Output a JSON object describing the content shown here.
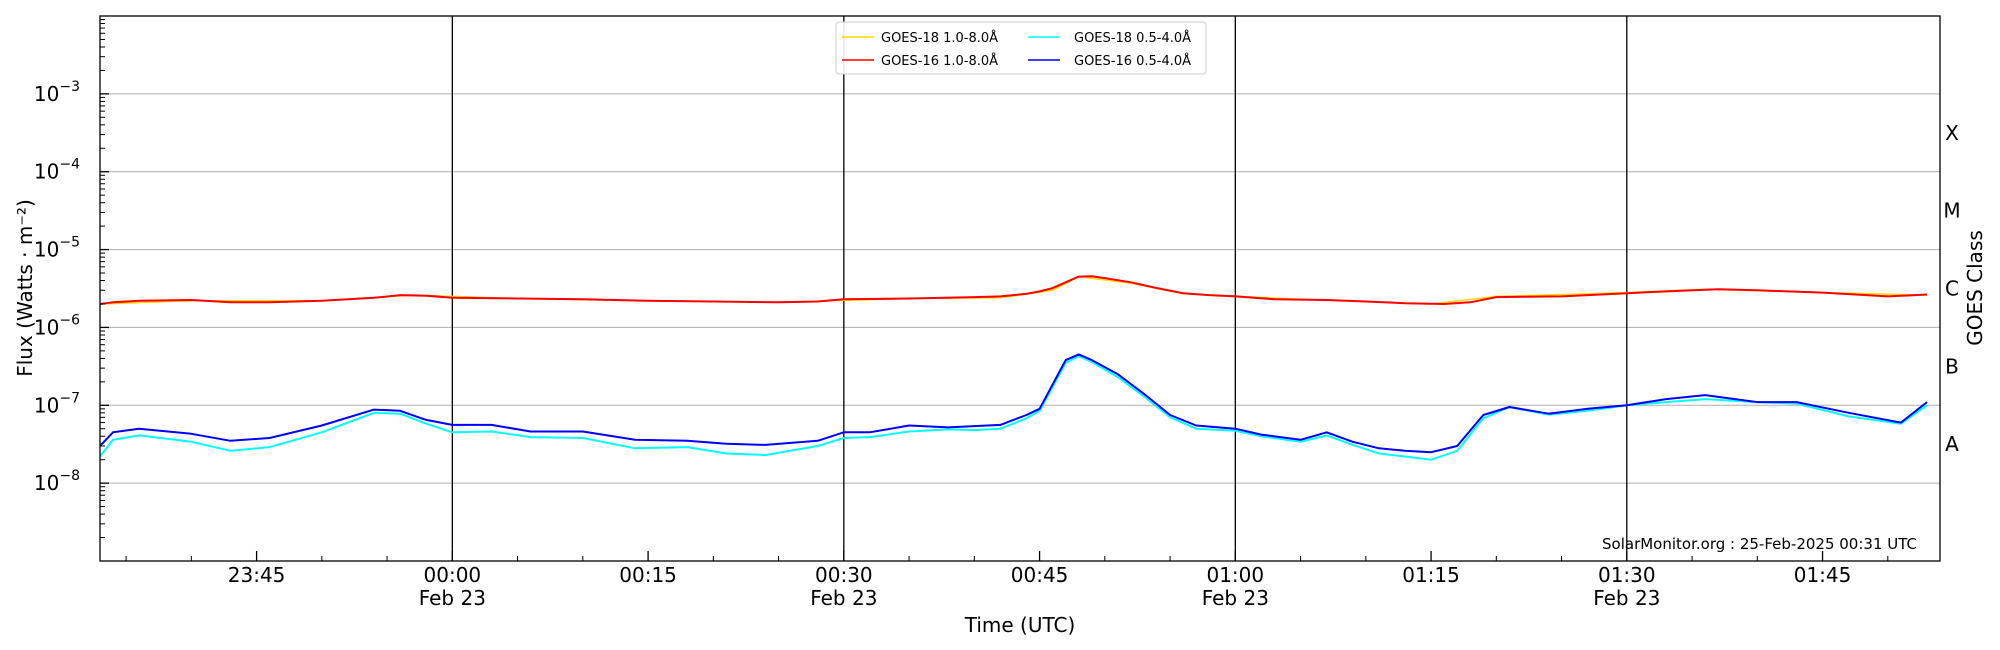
{
  "chart_data": {
    "type": "line",
    "xlabel": "Time (UTC)",
    "ylabel": "Flux (Watts · m⁻²)",
    "y2label": "GOES Class",
    "yscale": "log",
    "ylim": [
      1e-09,
      0.01
    ],
    "xlim": [
      "2025-02-22T23:33",
      "2025-02-23T01:54"
    ],
    "grid": "horizontal",
    "legend_position": "top-center",
    "annotation": "SolarMonitor.org : 25-Feb-2025 00:31 UTC",
    "x_ticks": [
      {
        "label": "23:45",
        "sub": ""
      },
      {
        "label": "00:00",
        "sub": "Feb 23"
      },
      {
        "label": "00:15",
        "sub": ""
      },
      {
        "label": "00:30",
        "sub": "Feb 23"
      },
      {
        "label": "00:45",
        "sub": ""
      },
      {
        "label": "01:00",
        "sub": "Feb 23"
      },
      {
        "label": "01:15",
        "sub": ""
      },
      {
        "label": "01:30",
        "sub": "Feb 23"
      },
      {
        "label": "01:45",
        "sub": ""
      }
    ],
    "x_tick_times": [
      "2025-02-22T23:45",
      "2025-02-23T00:00",
      "2025-02-23T00:15",
      "2025-02-23T00:30",
      "2025-02-23T00:45",
      "2025-02-23T01:00",
      "2025-02-23T01:15",
      "2025-02-23T01:30",
      "2025-02-23T01:45"
    ],
    "vertical_lines": [
      "2025-02-23T00:00",
      "2025-02-23T00:30",
      "2025-02-23T01:00",
      "2025-02-23T01:30"
    ],
    "y_ticks": [
      {
        "value": 1e-08,
        "base": "10",
        "exp": "−8"
      },
      {
        "value": 1e-07,
        "base": "10",
        "exp": "−7"
      },
      {
        "value": 1e-06,
        "base": "10",
        "exp": "−6"
      },
      {
        "value": 1e-05,
        "base": "10",
        "exp": "−5"
      },
      {
        "value": 0.0001,
        "base": "10",
        "exp": "−4"
      },
      {
        "value": 0.001,
        "base": "10",
        "exp": "−3"
      }
    ],
    "goes_classes": [
      {
        "label": "A",
        "value": 3.16e-08
      },
      {
        "label": "B",
        "value": 3.16e-07
      },
      {
        "label": "C",
        "value": 3.16e-06
      },
      {
        "label": "M",
        "value": 3.16e-05
      },
      {
        "label": "X",
        "value": 0.000316
      }
    ],
    "legend": [
      {
        "name": "GOES-18 1.0-8.0Å",
        "color": "#ffd700"
      },
      {
        "name": "GOES-18 0.5-4.0Å",
        "color": "#00ffff"
      },
      {
        "name": "GOES-16 1.0-8.0Å",
        "color": "#ff0000"
      },
      {
        "name": "GOES-16 0.5-4.0Å",
        "color": "#0000ff"
      }
    ],
    "series": [
      {
        "name": "GOES-18 1.0-8.0Å",
        "color": "#ffd700",
        "width": 1.5,
        "x": [
          "2025-02-22T23:33",
          "2025-02-22T23:40",
          "2025-02-22T23:50",
          "2025-02-22T23:57",
          "2025-02-23T00:05",
          "2025-02-23T00:15",
          "2025-02-23T00:25",
          "2025-02-23T00:35",
          "2025-02-23T00:42",
          "2025-02-23T00:46",
          "2025-02-23T00:48",
          "2025-02-23T00:52",
          "2025-02-23T00:56",
          "2025-02-23T01:05",
          "2025-02-23T01:15",
          "2025-02-23T01:20",
          "2025-02-23T01:30",
          "2025-02-23T01:36",
          "2025-02-23T01:45",
          "2025-02-23T01:53"
        ],
        "y": [
          2e-06,
          2.2e-06,
          2.2e-06,
          2.6e-06,
          2.35e-06,
          2.2e-06,
          2.1e-06,
          2.35e-06,
          2.4e-06,
          3e-06,
          4.5e-06,
          3.7e-06,
          2.7e-06,
          2.3e-06,
          2e-06,
          2.5e-06,
          2.8e-06,
          3.1e-06,
          2.8e-06,
          2.6e-06
        ]
      },
      {
        "name": "GOES-16 1.0-8.0Å",
        "color": "#ff0000",
        "width": 2,
        "x": [
          "2025-02-22T23:33",
          "2025-02-22T23:34",
          "2025-02-22T23:36",
          "2025-02-22T23:40",
          "2025-02-22T23:43",
          "2025-02-22T23:46",
          "2025-02-22T23:50",
          "2025-02-22T23:54",
          "2025-02-22T23:56",
          "2025-02-22T23:58",
          "2025-02-23T00:00",
          "2025-02-23T00:05",
          "2025-02-23T00:10",
          "2025-02-23T00:15",
          "2025-02-23T00:20",
          "2025-02-23T00:25",
          "2025-02-23T00:28",
          "2025-02-23T00:30",
          "2025-02-23T00:35",
          "2025-02-23T00:40",
          "2025-02-23T00:42",
          "2025-02-23T00:44",
          "2025-02-23T00:45",
          "2025-02-23T00:46",
          "2025-02-23T00:47",
          "2025-02-23T00:48",
          "2025-02-23T00:49",
          "2025-02-23T00:50",
          "2025-02-23T00:52",
          "2025-02-23T00:54",
          "2025-02-23T00:56",
          "2025-02-23T00:58",
          "2025-02-23T01:00",
          "2025-02-23T01:03",
          "2025-02-23T01:07",
          "2025-02-23T01:10",
          "2025-02-23T01:13",
          "2025-02-23T01:16",
          "2025-02-23T01:18",
          "2025-02-23T01:20",
          "2025-02-23T01:25",
          "2025-02-23T01:30",
          "2025-02-23T01:33",
          "2025-02-23T01:37",
          "2025-02-23T01:40",
          "2025-02-23T01:45",
          "2025-02-23T01:50",
          "2025-02-23T01:53"
        ],
        "y": [
          2e-06,
          2.1e-06,
          2.2e-06,
          2.25e-06,
          2.1e-06,
          2.1e-06,
          2.2e-06,
          2.4e-06,
          2.6e-06,
          2.55e-06,
          2.4e-06,
          2.35e-06,
          2.3e-06,
          2.2e-06,
          2.15e-06,
          2.1e-06,
          2.15e-06,
          2.3e-06,
          2.35e-06,
          2.45e-06,
          2.5e-06,
          2.7e-06,
          2.9e-06,
          3.2e-06,
          3.8e-06,
          4.5e-06,
          4.55e-06,
          4.3e-06,
          3.8e-06,
          3.2e-06,
          2.75e-06,
          2.6e-06,
          2.5e-06,
          2.3e-06,
          2.25e-06,
          2.15e-06,
          2.05e-06,
          2e-06,
          2.1e-06,
          2.45e-06,
          2.5e-06,
          2.75e-06,
          2.9e-06,
          3.1e-06,
          3e-06,
          2.8e-06,
          2.5e-06,
          2.65e-06
        ]
      },
      {
        "name": "GOES-18 0.5-4.0Å",
        "color": "#00ffff",
        "width": 2,
        "x": [
          "2025-02-22T23:33",
          "2025-02-22T23:34",
          "2025-02-22T23:36",
          "2025-02-22T23:40",
          "2025-02-22T23:43",
          "2025-02-22T23:46",
          "2025-02-22T23:50",
          "2025-02-22T23:54",
          "2025-02-22T23:56",
          "2025-02-22T23:58",
          "2025-02-23T00:00",
          "2025-02-23T00:03",
          "2025-02-23T00:06",
          "2025-02-23T00:10",
          "2025-02-23T00:14",
          "2025-02-23T00:18",
          "2025-02-23T00:21",
          "2025-02-23T00:24",
          "2025-02-23T00:28",
          "2025-02-23T00:30",
          "2025-02-23T00:32",
          "2025-02-23T00:35",
          "2025-02-23T00:38",
          "2025-02-23T00:40",
          "2025-02-23T00:42",
          "2025-02-23T00:44",
          "2025-02-23T00:45",
          "2025-02-23T00:47",
          "2025-02-23T00:48",
          "2025-02-23T00:49",
          "2025-02-23T00:51",
          "2025-02-23T00:53",
          "2025-02-23T00:55",
          "2025-02-23T00:57",
          "2025-02-23T01:00",
          "2025-02-23T01:02",
          "2025-02-23T01:05",
          "2025-02-23T01:07",
          "2025-02-23T01:09",
          "2025-02-23T01:11",
          "2025-02-23T01:13",
          "2025-02-23T01:15",
          "2025-02-23T01:17",
          "2025-02-23T01:19",
          "2025-02-23T01:21",
          "2025-02-23T01:24",
          "2025-02-23T01:27",
          "2025-02-23T01:30",
          "2025-02-23T01:33",
          "2025-02-23T01:36",
          "2025-02-23T01:40",
          "2025-02-23T01:43",
          "2025-02-23T01:47",
          "2025-02-23T01:51",
          "2025-02-23T01:53"
        ],
        "y": [
          2.2e-08,
          3.6e-08,
          4.1e-08,
          3.4e-08,
          2.6e-08,
          2.9e-08,
          4.5e-08,
          8e-08,
          7.8e-08,
          5.8e-08,
          4.5e-08,
          4.6e-08,
          3.9e-08,
          3.8e-08,
          2.8e-08,
          2.9e-08,
          2.4e-08,
          2.3e-08,
          3e-08,
          3.8e-08,
          3.9e-08,
          4.6e-08,
          4.9e-08,
          4.8e-08,
          5e-08,
          6.8e-08,
          8.5e-08,
          3.5e-07,
          4.3e-07,
          3.6e-07,
          2.3e-07,
          1.3e-07,
          7e-08,
          5e-08,
          4.7e-08,
          4e-08,
          3.4e-08,
          4.1e-08,
          3.1e-08,
          2.4e-08,
          2.2e-08,
          2e-08,
          2.6e-08,
          6.8e-08,
          9.5e-08,
          7.6e-08,
          8.5e-08,
          1e-07,
          1.1e-07,
          1.2e-07,
          1.1e-07,
          1.05e-07,
          7.2e-08,
          5.8e-08,
          1e-07
        ]
      },
      {
        "name": "GOES-16 0.5-4.0Å",
        "color": "#0000ff",
        "width": 2,
        "x": [
          "2025-02-22T23:33",
          "2025-02-22T23:34",
          "2025-02-22T23:36",
          "2025-02-22T23:40",
          "2025-02-22T23:43",
          "2025-02-22T23:46",
          "2025-02-22T23:50",
          "2025-02-22T23:54",
          "2025-02-22T23:56",
          "2025-02-22T23:58",
          "2025-02-23T00:00",
          "2025-02-23T00:03",
          "2025-02-23T00:06",
          "2025-02-23T00:10",
          "2025-02-23T00:14",
          "2025-02-23T00:18",
          "2025-02-23T00:21",
          "2025-02-23T00:24",
          "2025-02-23T00:28",
          "2025-02-23T00:30",
          "2025-02-23T00:32",
          "2025-02-23T00:35",
          "2025-02-23T00:38",
          "2025-02-23T00:40",
          "2025-02-23T00:42",
          "2025-02-23T00:44",
          "2025-02-23T00:45",
          "2025-02-23T00:47",
          "2025-02-23T00:48",
          "2025-02-23T00:49",
          "2025-02-23T00:51",
          "2025-02-23T00:53",
          "2025-02-23T00:55",
          "2025-02-23T00:57",
          "2025-02-23T01:00",
          "2025-02-23T01:02",
          "2025-02-23T01:05",
          "2025-02-23T01:07",
          "2025-02-23T01:09",
          "2025-02-23T01:11",
          "2025-02-23T01:13",
          "2025-02-23T01:15",
          "2025-02-23T01:17",
          "2025-02-23T01:19",
          "2025-02-23T01:21",
          "2025-02-23T01:24",
          "2025-02-23T01:27",
          "2025-02-23T01:30",
          "2025-02-23T01:33",
          "2025-02-23T01:36",
          "2025-02-23T01:40",
          "2025-02-23T01:43",
          "2025-02-23T01:47",
          "2025-02-23T01:51",
          "2025-02-23T01:53"
        ],
        "y": [
          3e-08,
          4.5e-08,
          5e-08,
          4.3e-08,
          3.5e-08,
          3.8e-08,
          5.5e-08,
          8.8e-08,
          8.5e-08,
          6.5e-08,
          5.6e-08,
          5.6e-08,
          4.6e-08,
          4.6e-08,
          3.6e-08,
          3.5e-08,
          3.2e-08,
          3.1e-08,
          3.5e-08,
          4.5e-08,
          4.5e-08,
          5.5e-08,
          5.2e-08,
          5.4e-08,
          5.6e-08,
          7.5e-08,
          9e-08,
          3.8e-07,
          4.5e-07,
          3.8e-07,
          2.5e-07,
          1.4e-07,
          7.5e-08,
          5.5e-08,
          5e-08,
          4.2e-08,
          3.6e-08,
          4.5e-08,
          3.4e-08,
          2.8e-08,
          2.6e-08,
          2.5e-08,
          3e-08,
          7.5e-08,
          9.5e-08,
          7.8e-08,
          9e-08,
          1e-07,
          1.2e-07,
          1.35e-07,
          1.1e-07,
          1.1e-07,
          8e-08,
          6e-08,
          1.1e-07
        ]
      }
    ]
  }
}
